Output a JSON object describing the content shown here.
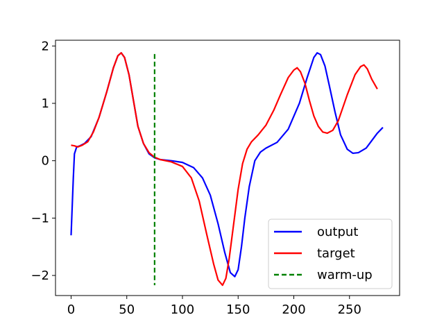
{
  "chart_data": {
    "type": "line",
    "title": "",
    "xlabel": "",
    "ylabel": "",
    "xlim": [
      -14,
      295
    ],
    "ylim": [
      -2.35,
      2.1
    ],
    "x_ticks": [
      0,
      50,
      100,
      150,
      200,
      250
    ],
    "y_ticks": [
      -2,
      -1,
      0,
      1,
      2
    ],
    "x_tick_labels": [
      "0",
      "50",
      "100",
      "150",
      "200",
      "250"
    ],
    "y_tick_labels": [
      "−2",
      "−1",
      "0",
      "1",
      "2"
    ],
    "grid": false,
    "legend_position": "lower-right",
    "series": [
      {
        "name": "output",
        "color": "#0000ff",
        "style": "solid",
        "points": [
          [
            0,
            -1.3
          ],
          [
            2,
            -0.3
          ],
          [
            3,
            0.12
          ],
          [
            5,
            0.24
          ],
          [
            8,
            0.26
          ],
          [
            12,
            0.3
          ],
          [
            18,
            0.42
          ],
          [
            25,
            0.75
          ],
          [
            32,
            1.2
          ],
          [
            38,
            1.62
          ],
          [
            42,
            1.83
          ],
          [
            45,
            1.88
          ],
          [
            48,
            1.8
          ],
          [
            52,
            1.5
          ],
          [
            56,
            1.05
          ],
          [
            60,
            0.6
          ],
          [
            65,
            0.3
          ],
          [
            70,
            0.12
          ],
          [
            75,
            0.05
          ],
          [
            80,
            0.02
          ],
          [
            90,
            0.0
          ],
          [
            100,
            -0.03
          ],
          [
            110,
            -0.12
          ],
          [
            118,
            -0.3
          ],
          [
            125,
            -0.6
          ],
          [
            132,
            -1.1
          ],
          [
            138,
            -1.6
          ],
          [
            143,
            -1.95
          ],
          [
            147,
            -2.02
          ],
          [
            150,
            -1.9
          ],
          [
            153,
            -1.5
          ],
          [
            156,
            -1.0
          ],
          [
            160,
            -0.45
          ],
          [
            165,
            0.0
          ],
          [
            170,
            0.15
          ],
          [
            175,
            0.22
          ],
          [
            185,
            0.32
          ],
          [
            195,
            0.55
          ],
          [
            205,
            1.0
          ],
          [
            212,
            1.45
          ],
          [
            218,
            1.8
          ],
          [
            221,
            1.88
          ],
          [
            224,
            1.85
          ],
          [
            228,
            1.65
          ],
          [
            232,
            1.3
          ],
          [
            237,
            0.85
          ],
          [
            242,
            0.45
          ],
          [
            248,
            0.2
          ],
          [
            253,
            0.13
          ],
          [
            258,
            0.14
          ],
          [
            265,
            0.22
          ],
          [
            270,
            0.35
          ],
          [
            275,
            0.48
          ],
          [
            280,
            0.58
          ]
        ]
      },
      {
        "name": "target",
        "color": "#ff0000",
        "style": "solid",
        "points": [
          [
            0,
            0.27
          ],
          [
            3,
            0.26
          ],
          [
            6,
            0.24
          ],
          [
            10,
            0.27
          ],
          [
            15,
            0.33
          ],
          [
            20,
            0.5
          ],
          [
            25,
            0.75
          ],
          [
            32,
            1.2
          ],
          [
            38,
            1.62
          ],
          [
            42,
            1.83
          ],
          [
            45,
            1.88
          ],
          [
            48,
            1.8
          ],
          [
            52,
            1.5
          ],
          [
            56,
            1.05
          ],
          [
            60,
            0.6
          ],
          [
            65,
            0.3
          ],
          [
            70,
            0.14
          ],
          [
            75,
            0.06
          ],
          [
            80,
            0.02
          ],
          [
            90,
            -0.02
          ],
          [
            100,
            -0.1
          ],
          [
            108,
            -0.3
          ],
          [
            115,
            -0.7
          ],
          [
            122,
            -1.3
          ],
          [
            128,
            -1.8
          ],
          [
            132,
            -2.08
          ],
          [
            136,
            -2.17
          ],
          [
            139,
            -2.05
          ],
          [
            142,
            -1.7
          ],
          [
            146,
            -1.1
          ],
          [
            150,
            -0.5
          ],
          [
            154,
            -0.05
          ],
          [
            158,
            0.2
          ],
          [
            162,
            0.33
          ],
          [
            168,
            0.45
          ],
          [
            175,
            0.62
          ],
          [
            182,
            0.88
          ],
          [
            188,
            1.15
          ],
          [
            195,
            1.45
          ],
          [
            200,
            1.58
          ],
          [
            203,
            1.62
          ],
          [
            206,
            1.55
          ],
          [
            210,
            1.35
          ],
          [
            214,
            1.05
          ],
          [
            218,
            0.78
          ],
          [
            222,
            0.6
          ],
          [
            226,
            0.5
          ],
          [
            230,
            0.48
          ],
          [
            235,
            0.53
          ],
          [
            240,
            0.7
          ],
          [
            248,
            1.15
          ],
          [
            255,
            1.5
          ],
          [
            260,
            1.64
          ],
          [
            263,
            1.67
          ],
          [
            266,
            1.6
          ],
          [
            270,
            1.42
          ],
          [
            275,
            1.25
          ]
        ]
      },
      {
        "name": "warm-up",
        "color": "#008000",
        "style": "dashed",
        "points": [
          [
            75,
            1.86
          ],
          [
            75,
            -2.17
          ]
        ]
      }
    ]
  }
}
